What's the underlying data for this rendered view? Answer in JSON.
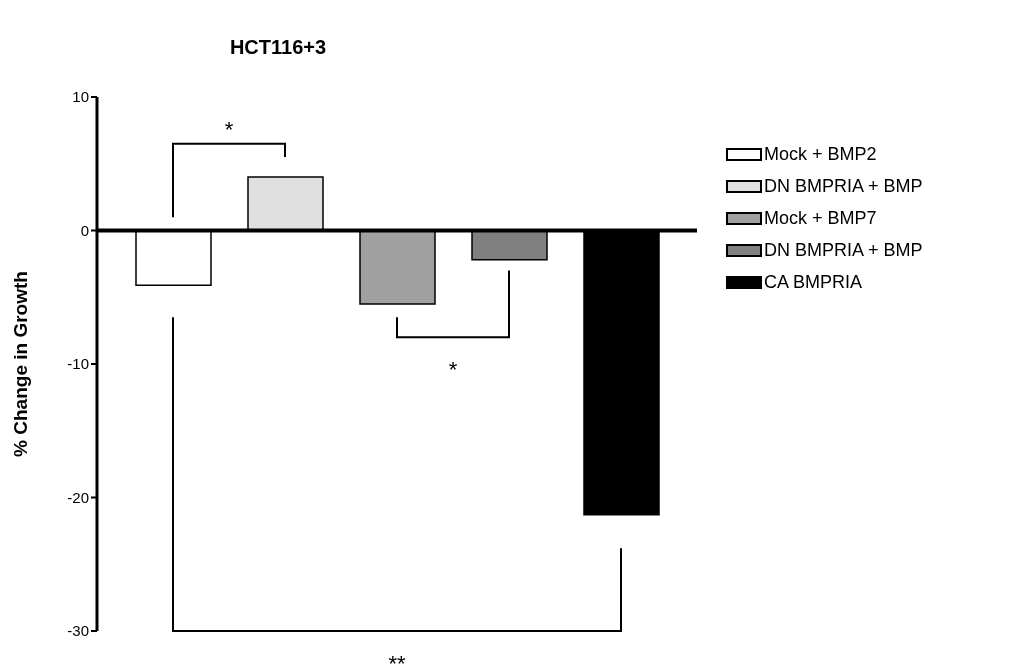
{
  "chart_data": {
    "type": "bar",
    "title": "HCT116+3",
    "ylabel": "% Change in Growth",
    "categories": [
      null
    ],
    "series": [
      {
        "name": "Mock + BMP2",
        "color": "#ffffff",
        "values": [
          -4.1
        ]
      },
      {
        "name": "DN BMPRIA + BMP",
        "color": "#e0e0e0",
        "values": [
          4.0
        ]
      },
      {
        "name": "Mock + BMP7",
        "color": "#a0a0a0",
        "values": [
          -5.5
        ]
      },
      {
        "name": "DN BMPRIA + BMP",
        "color": "#808080",
        "values": [
          -2.2
        ]
      },
      {
        "name": "CA BMPRIA",
        "color": "#000000",
        "values": [
          -21.3
        ]
      }
    ],
    "ylim": [
      -30,
      10
    ],
    "yticks": [
      10,
      0,
      -10,
      -20,
      -30
    ],
    "legend": "top right",
    "annotations": [
      "*",
      "*",
      "**"
    ]
  }
}
